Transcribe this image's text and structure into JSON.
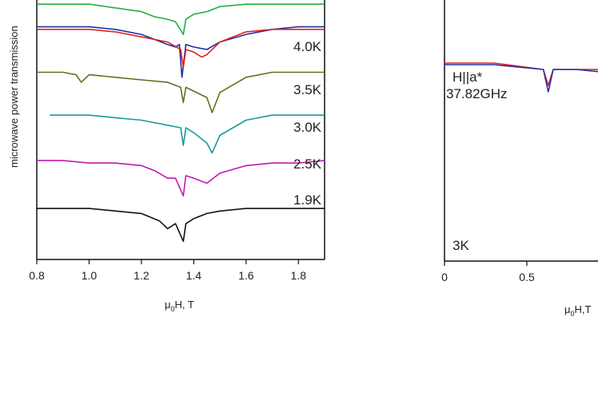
{
  "chart_data": [
    {
      "type": "line",
      "ylabel": "microwave power transmission",
      "xlim": [
        0.8,
        1.9
      ],
      "xticks": [
        "0.8",
        "1.0",
        "1.2",
        "1.4",
        "1.6",
        "1.8"
      ],
      "xlabel": {
        "mu": "μ",
        "sub": "0",
        "rest": "H, T"
      },
      "temperatures": [
        "4.0K",
        "3.5K",
        "3.0K",
        "2.5K",
        "1.9K"
      ],
      "series": [
        {
          "color": "#1f2f9f",
          "values": {
            "x": [
              0.8,
              1.0,
              1.1,
              1.2,
              1.25,
              1.3,
              1.33,
              1.345,
              1.355,
              1.37,
              1.4,
              1.45,
              1.5,
              1.6,
              1.7,
              1.8,
              1.9
            ],
            "y": [
              0.9,
              0.9,
              0.89,
              0.87,
              0.85,
              0.83,
              0.82,
              0.83,
              0.7,
              0.83,
              0.82,
              0.81,
              0.84,
              0.87,
              0.89,
              0.9,
              0.9
            ]
          }
        },
        {
          "color": "#e02020",
          "values": {
            "x": [
              0.8,
              1.0,
              1.1,
              1.2,
              1.3,
              1.35,
              1.36,
              1.37,
              1.4,
              1.43,
              1.45,
              1.5,
              1.6,
              1.7,
              1.8,
              1.9
            ],
            "y": [
              0.89,
              0.89,
              0.88,
              0.86,
              0.84,
              0.81,
              0.74,
              0.81,
              0.8,
              0.78,
              0.79,
              0.84,
              0.88,
              0.89,
              0.89,
              0.89
            ]
          }
        },
        {
          "color": "#6b6b20",
          "values": {
            "x": [
              0.8,
              0.9,
              0.95,
              0.97,
              1.0,
              1.1,
              1.2,
              1.3,
              1.35,
              1.36,
              1.37,
              1.45,
              1.47,
              1.5,
              1.6,
              1.7,
              1.8,
              1.9
            ],
            "y": [
              0.72,
              0.72,
              0.71,
              0.68,
              0.71,
              0.7,
              0.69,
              0.68,
              0.66,
              0.6,
              0.66,
              0.62,
              0.56,
              0.64,
              0.7,
              0.72,
              0.72,
              0.72
            ]
          }
        },
        {
          "color": "#1a9a9a",
          "values": {
            "x": [
              0.85,
              1.0,
              1.1,
              1.2,
              1.3,
              1.35,
              1.36,
              1.37,
              1.4,
              1.45,
              1.47,
              1.5,
              1.6,
              1.7,
              1.8,
              1.9
            ],
            "y": [
              0.55,
              0.55,
              0.54,
              0.53,
              0.51,
              0.5,
              0.43,
              0.5,
              0.48,
              0.44,
              0.4,
              0.47,
              0.53,
              0.55,
              0.55,
              0.55
            ]
          }
        },
        {
          "color": "#c01ab0",
          "values": {
            "x": [
              0.8,
              0.9,
              1.0,
              1.1,
              1.2,
              1.25,
              1.3,
              1.33,
              1.36,
              1.37,
              1.4,
              1.45,
              1.5,
              1.6,
              1.7,
              1.8,
              1.9
            ],
            "y": [
              0.37,
              0.37,
              0.36,
              0.36,
              0.35,
              0.33,
              0.3,
              0.3,
              0.23,
              0.31,
              0.3,
              0.28,
              0.32,
              0.35,
              0.36,
              0.36,
              0.37
            ]
          }
        },
        {
          "color": "#20b040",
          "values": {
            "x": [
              0.8,
              1.0,
              1.2,
              1.25,
              1.3,
              1.33,
              1.36,
              1.37,
              1.4,
              1.45,
              1.5,
              1.6,
              1.8,
              1.9
            ],
            "y": [
              0.99,
              0.99,
              0.96,
              0.94,
              0.93,
              0.92,
              0.87,
              0.93,
              0.95,
              0.96,
              0.98,
              0.99,
              0.99,
              0.99
            ]
          }
        },
        {
          "color": "#111111",
          "values": {
            "x": [
              0.8,
              1.0,
              1.2,
              1.27,
              1.3,
              1.33,
              1.36,
              1.37,
              1.4,
              1.45,
              1.5,
              1.6,
              1.8,
              1.9
            ],
            "y": [
              0.18,
              0.18,
              0.16,
              0.13,
              0.1,
              0.12,
              0.05,
              0.12,
              0.14,
              0.16,
              0.17,
              0.18,
              0.18,
              0.18
            ]
          }
        }
      ]
    },
    {
      "type": "line",
      "xticks": [
        "0",
        "0.5"
      ],
      "xlabel": {
        "mu": "μ",
        "sub": "0",
        "rest": "H,T"
      },
      "annotation_lines": [
        "H||a*",
        "37.82GHz"
      ],
      "temperature_label": "3K",
      "series": [
        {
          "color": "#e02020",
          "values": {
            "x": [
              0,
              0.3,
              0.6,
              0.63,
              0.66,
              0.8,
              1.0
            ],
            "y": [
              0.62,
              0.62,
              0.6,
              0.55,
              0.6,
              0.6,
              0.6
            ]
          }
        },
        {
          "color": "#2a2fa0",
          "values": {
            "x": [
              0,
              0.3,
              0.6,
              0.63,
              0.66,
              0.8,
              1.0
            ],
            "y": [
              0.615,
              0.615,
              0.6,
              0.53,
              0.6,
              0.6,
              0.59
            ]
          }
        }
      ]
    }
  ]
}
